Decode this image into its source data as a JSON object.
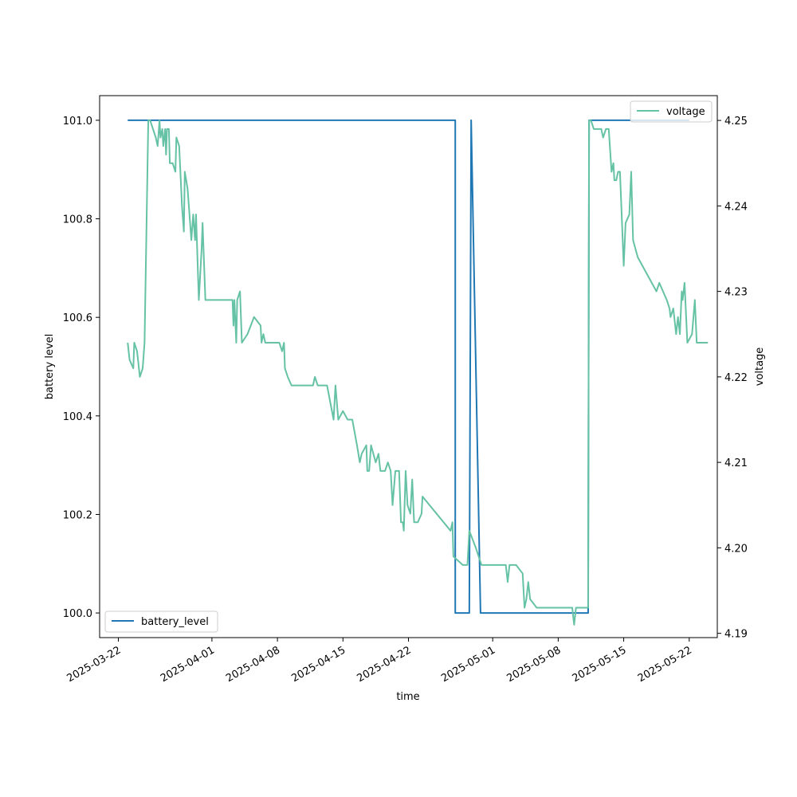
{
  "chart_data": {
    "type": "line",
    "xlabel": "time",
    "ylabel": "battery level",
    "y2label": "voltage",
    "xlim": [
      "2025-03-20",
      "2025-05-25"
    ],
    "ylim": [
      99.95,
      101.05
    ],
    "y2lim": [
      4.1895,
      4.2529
    ],
    "xticks": [
      "2025-03-22",
      "2025-04-01",
      "2025-04-08",
      "2025-04-15",
      "2025-04-22",
      "2025-05-01",
      "2025-05-08",
      "2025-05-15",
      "2025-05-22"
    ],
    "yticks": [
      "100.0",
      "100.2",
      "100.4",
      "100.6",
      "100.8",
      "101.0"
    ],
    "y2ticks": [
      "4.19",
      "4.20",
      "4.21",
      "4.22",
      "4.23",
      "4.24",
      "4.25"
    ],
    "grid": false,
    "legend_positions": {
      "battery_level": "lower-left",
      "voltage": "upper-right"
    },
    "series": [
      {
        "name": "battery_level",
        "axis": "left",
        "color": "#1f77b4",
        "points": [
          [
            "2025-03-23",
            101.0
          ],
          [
            "2025-04-27",
            101.0
          ],
          [
            "2025-04-27",
            100.0
          ],
          [
            "2025-04-28.5",
            100.0
          ],
          [
            "2025-04-28.7",
            101.0
          ],
          [
            "2025-04-29.7",
            100.0
          ],
          [
            "2025-05-11.2",
            100.0
          ],
          [
            "2025-05-11.3",
            101.0
          ],
          [
            "2025-05-22",
            101.0
          ]
        ]
      },
      {
        "name": "voltage",
        "axis": "right",
        "color": "#66c2a5",
        "points": [
          [
            "2025-03-23.0",
            4.224
          ],
          [
            "2025-03-23.2",
            4.222
          ],
          [
            "2025-03-23.6",
            4.221
          ],
          [
            "2025-03-23.7",
            4.224
          ],
          [
            "2025-03-24.0",
            4.223
          ],
          [
            "2025-03-24.3",
            4.22
          ],
          [
            "2025-03-24.6",
            4.221
          ],
          [
            "2025-03-24.8",
            4.224
          ],
          [
            "2025-03-25.2",
            4.25
          ],
          [
            "2025-03-25.4",
            4.25
          ],
          [
            "2025-03-26.0",
            4.248
          ],
          [
            "2025-03-26.2",
            4.247
          ],
          [
            "2025-03-26.4",
            4.25
          ],
          [
            "2025-03-26.5",
            4.248
          ],
          [
            "2025-03-26.7",
            4.249
          ],
          [
            "2025-03-26.8",
            4.247
          ],
          [
            "2025-03-27.0",
            4.249
          ],
          [
            "2025-03-27.1",
            4.246
          ],
          [
            "2025-03-27.2",
            4.249
          ],
          [
            "2025-03-27.4",
            4.249
          ],
          [
            "2025-03-27.5",
            4.245
          ],
          [
            "2025-03-27.8",
            4.245
          ],
          [
            "2025-03-28.1",
            4.244
          ],
          [
            "2025-03-28.2",
            4.248
          ],
          [
            "2025-03-28.5",
            4.247
          ],
          [
            "2025-03-28.8",
            4.24
          ],
          [
            "2025-03-29.0",
            4.237
          ],
          [
            "2025-03-29.1",
            4.244
          ],
          [
            "2025-03-29.4",
            4.242
          ],
          [
            "2025-03-29.8",
            4.236
          ],
          [
            "2025-03-30.0",
            4.239
          ],
          [
            "2025-03-30.2",
            4.236
          ],
          [
            "2025-03-30.3",
            4.239
          ],
          [
            "2025-03-30.6",
            4.229
          ],
          [
            "2025-03-30.9",
            4.235
          ],
          [
            "2025-03-31.0",
            4.238
          ],
          [
            "2025-03-31.3",
            4.229
          ],
          [
            "2025-04-03.2",
            4.229
          ],
          [
            "2025-04-03.3",
            4.226
          ],
          [
            "2025-04-03.4",
            4.229
          ],
          [
            "2025-04-03.6",
            4.224
          ],
          [
            "2025-04-03.7",
            4.229
          ],
          [
            "2025-04-04.0",
            4.23
          ],
          [
            "2025-04-04.2",
            4.224
          ],
          [
            "2025-04-04.8",
            4.225
          ],
          [
            "2025-04-05.5",
            4.227
          ],
          [
            "2025-04-06.2",
            4.226
          ],
          [
            "2025-04-06.3",
            4.224
          ],
          [
            "2025-04-06.5",
            4.225
          ],
          [
            "2025-04-06.7",
            4.224
          ],
          [
            "2025-04-08.2",
            4.224
          ],
          [
            "2025-04-08.5",
            4.223
          ],
          [
            "2025-04-08.7",
            4.224
          ],
          [
            "2025-04-08.8",
            4.221
          ],
          [
            "2025-04-09.1",
            4.22
          ],
          [
            "2025-04-09.5",
            4.219
          ],
          [
            "2025-04-11.8",
            4.219
          ],
          [
            "2025-04-12.0",
            4.22
          ],
          [
            "2025-04-12.3",
            4.219
          ],
          [
            "2025-04-13.3",
            4.219
          ],
          [
            "2025-04-14.0",
            4.215
          ],
          [
            "2025-04-14.2",
            4.219
          ],
          [
            "2025-04-14.5",
            4.215
          ],
          [
            "2025-04-15.0",
            4.216
          ],
          [
            "2025-04-15.5",
            4.215
          ],
          [
            "2025-04-16.0",
            4.215
          ],
          [
            "2025-04-16.5",
            4.212
          ],
          [
            "2025-04-16.8",
            4.21
          ],
          [
            "2025-04-17.0",
            4.211
          ],
          [
            "2025-04-17.5",
            4.212
          ],
          [
            "2025-04-17.6",
            4.209
          ],
          [
            "2025-04-17.8",
            4.209
          ],
          [
            "2025-04-18.0",
            4.212
          ],
          [
            "2025-04-18.5",
            4.21
          ],
          [
            "2025-04-18.8",
            4.211
          ],
          [
            "2025-04-19.0",
            4.209
          ],
          [
            "2025-04-19.5",
            4.209
          ],
          [
            "2025-04-19.8",
            4.21
          ],
          [
            "2025-04-20.1",
            4.209
          ],
          [
            "2025-04-20.3",
            4.205
          ],
          [
            "2025-04-20.6",
            4.209
          ],
          [
            "2025-04-21.0",
            4.209
          ],
          [
            "2025-04-21.2",
            4.203
          ],
          [
            "2025-04-21.4",
            4.203
          ],
          [
            "2025-04-21.5",
            4.202
          ],
          [
            "2025-04-21.7",
            4.209
          ],
          [
            "2025-04-21.9",
            4.205
          ],
          [
            "2025-04-22.2",
            4.204
          ],
          [
            "2025-04-22.4",
            4.208
          ],
          [
            "2025-04-22.6",
            4.203
          ],
          [
            "2025-04-23.0",
            4.203
          ],
          [
            "2025-04-23.4",
            4.204
          ],
          [
            "2025-04-23.5",
            4.206
          ],
          [
            "2025-04-26.5",
            4.202
          ],
          [
            "2025-04-26.7",
            4.203
          ],
          [
            "2025-04-26.8",
            4.199
          ],
          [
            "2025-04-27.8",
            4.198
          ],
          [
            "2025-04-28.3",
            4.198
          ],
          [
            "2025-04-28.5",
            4.202
          ],
          [
            "2025-04-29.2",
            4.2
          ],
          [
            "2025-04-29.8",
            4.198
          ],
          [
            "2025-05-02.0",
            4.198
          ],
          [
            "2025-05-02.4",
            4.198
          ],
          [
            "2025-05-02.6",
            4.196
          ],
          [
            "2025-05-02.8",
            4.198
          ],
          [
            "2025-05-03.5",
            4.198
          ],
          [
            "2025-05-04.2",
            4.197
          ],
          [
            "2025-05-04.4",
            4.193
          ],
          [
            "2025-05-04.6",
            4.194
          ],
          [
            "2025-05-04.8",
            4.196
          ],
          [
            "2025-05-05.0",
            4.194
          ],
          [
            "2025-05-05.7",
            4.193
          ],
          [
            "2025-05-09.5",
            4.193
          ],
          [
            "2025-05-09.7",
            4.191
          ],
          [
            "2025-05-09.9",
            4.193
          ],
          [
            "2025-05-11.2",
            4.193
          ],
          [
            "2025-05-11.3",
            4.25
          ],
          [
            "2025-05-11.5",
            4.25
          ],
          [
            "2025-05-11.8",
            4.249
          ],
          [
            "2025-05-12.6",
            4.249
          ],
          [
            "2025-05-12.8",
            4.248
          ],
          [
            "2025-05-13.1",
            4.249
          ],
          [
            "2025-05-13.4",
            4.249
          ],
          [
            "2025-05-13.7",
            4.244
          ],
          [
            "2025-05-13.9",
            4.245
          ],
          [
            "2025-05-14.0",
            4.243
          ],
          [
            "2025-05-14.2",
            4.243
          ],
          [
            "2025-05-14.4",
            4.244
          ],
          [
            "2025-05-14.6",
            4.244
          ],
          [
            "2025-05-15.0",
            4.233
          ],
          [
            "2025-05-15.2",
            4.238
          ],
          [
            "2025-05-15.6",
            4.239
          ],
          [
            "2025-05-15.8",
            4.244
          ],
          [
            "2025-05-16.0",
            4.236
          ],
          [
            "2025-05-16.5",
            4.234
          ],
          [
            "2025-05-18.5",
            4.23
          ],
          [
            "2025-05-18.8",
            4.231
          ],
          [
            "2025-05-19.2",
            4.23
          ],
          [
            "2025-05-19.6",
            4.229
          ],
          [
            "2025-05-19.9",
            4.228
          ],
          [
            "2025-05-20.0",
            4.227
          ],
          [
            "2025-05-20.3",
            4.228
          ],
          [
            "2025-05-20.6",
            4.225
          ],
          [
            "2025-05-20.8",
            4.227
          ],
          [
            "2025-05-21.0",
            4.225
          ],
          [
            "2025-05-21.2",
            4.23
          ],
          [
            "2025-05-21.3",
            4.229
          ],
          [
            "2025-05-21.5",
            4.231
          ],
          [
            "2025-05-21.8",
            4.224
          ],
          [
            "2025-05-22.3",
            4.225
          ],
          [
            "2025-05-22.6",
            4.229
          ],
          [
            "2025-05-22.8",
            4.224
          ],
          [
            "2025-05-24.0",
            4.224
          ]
        ]
      }
    ]
  }
}
